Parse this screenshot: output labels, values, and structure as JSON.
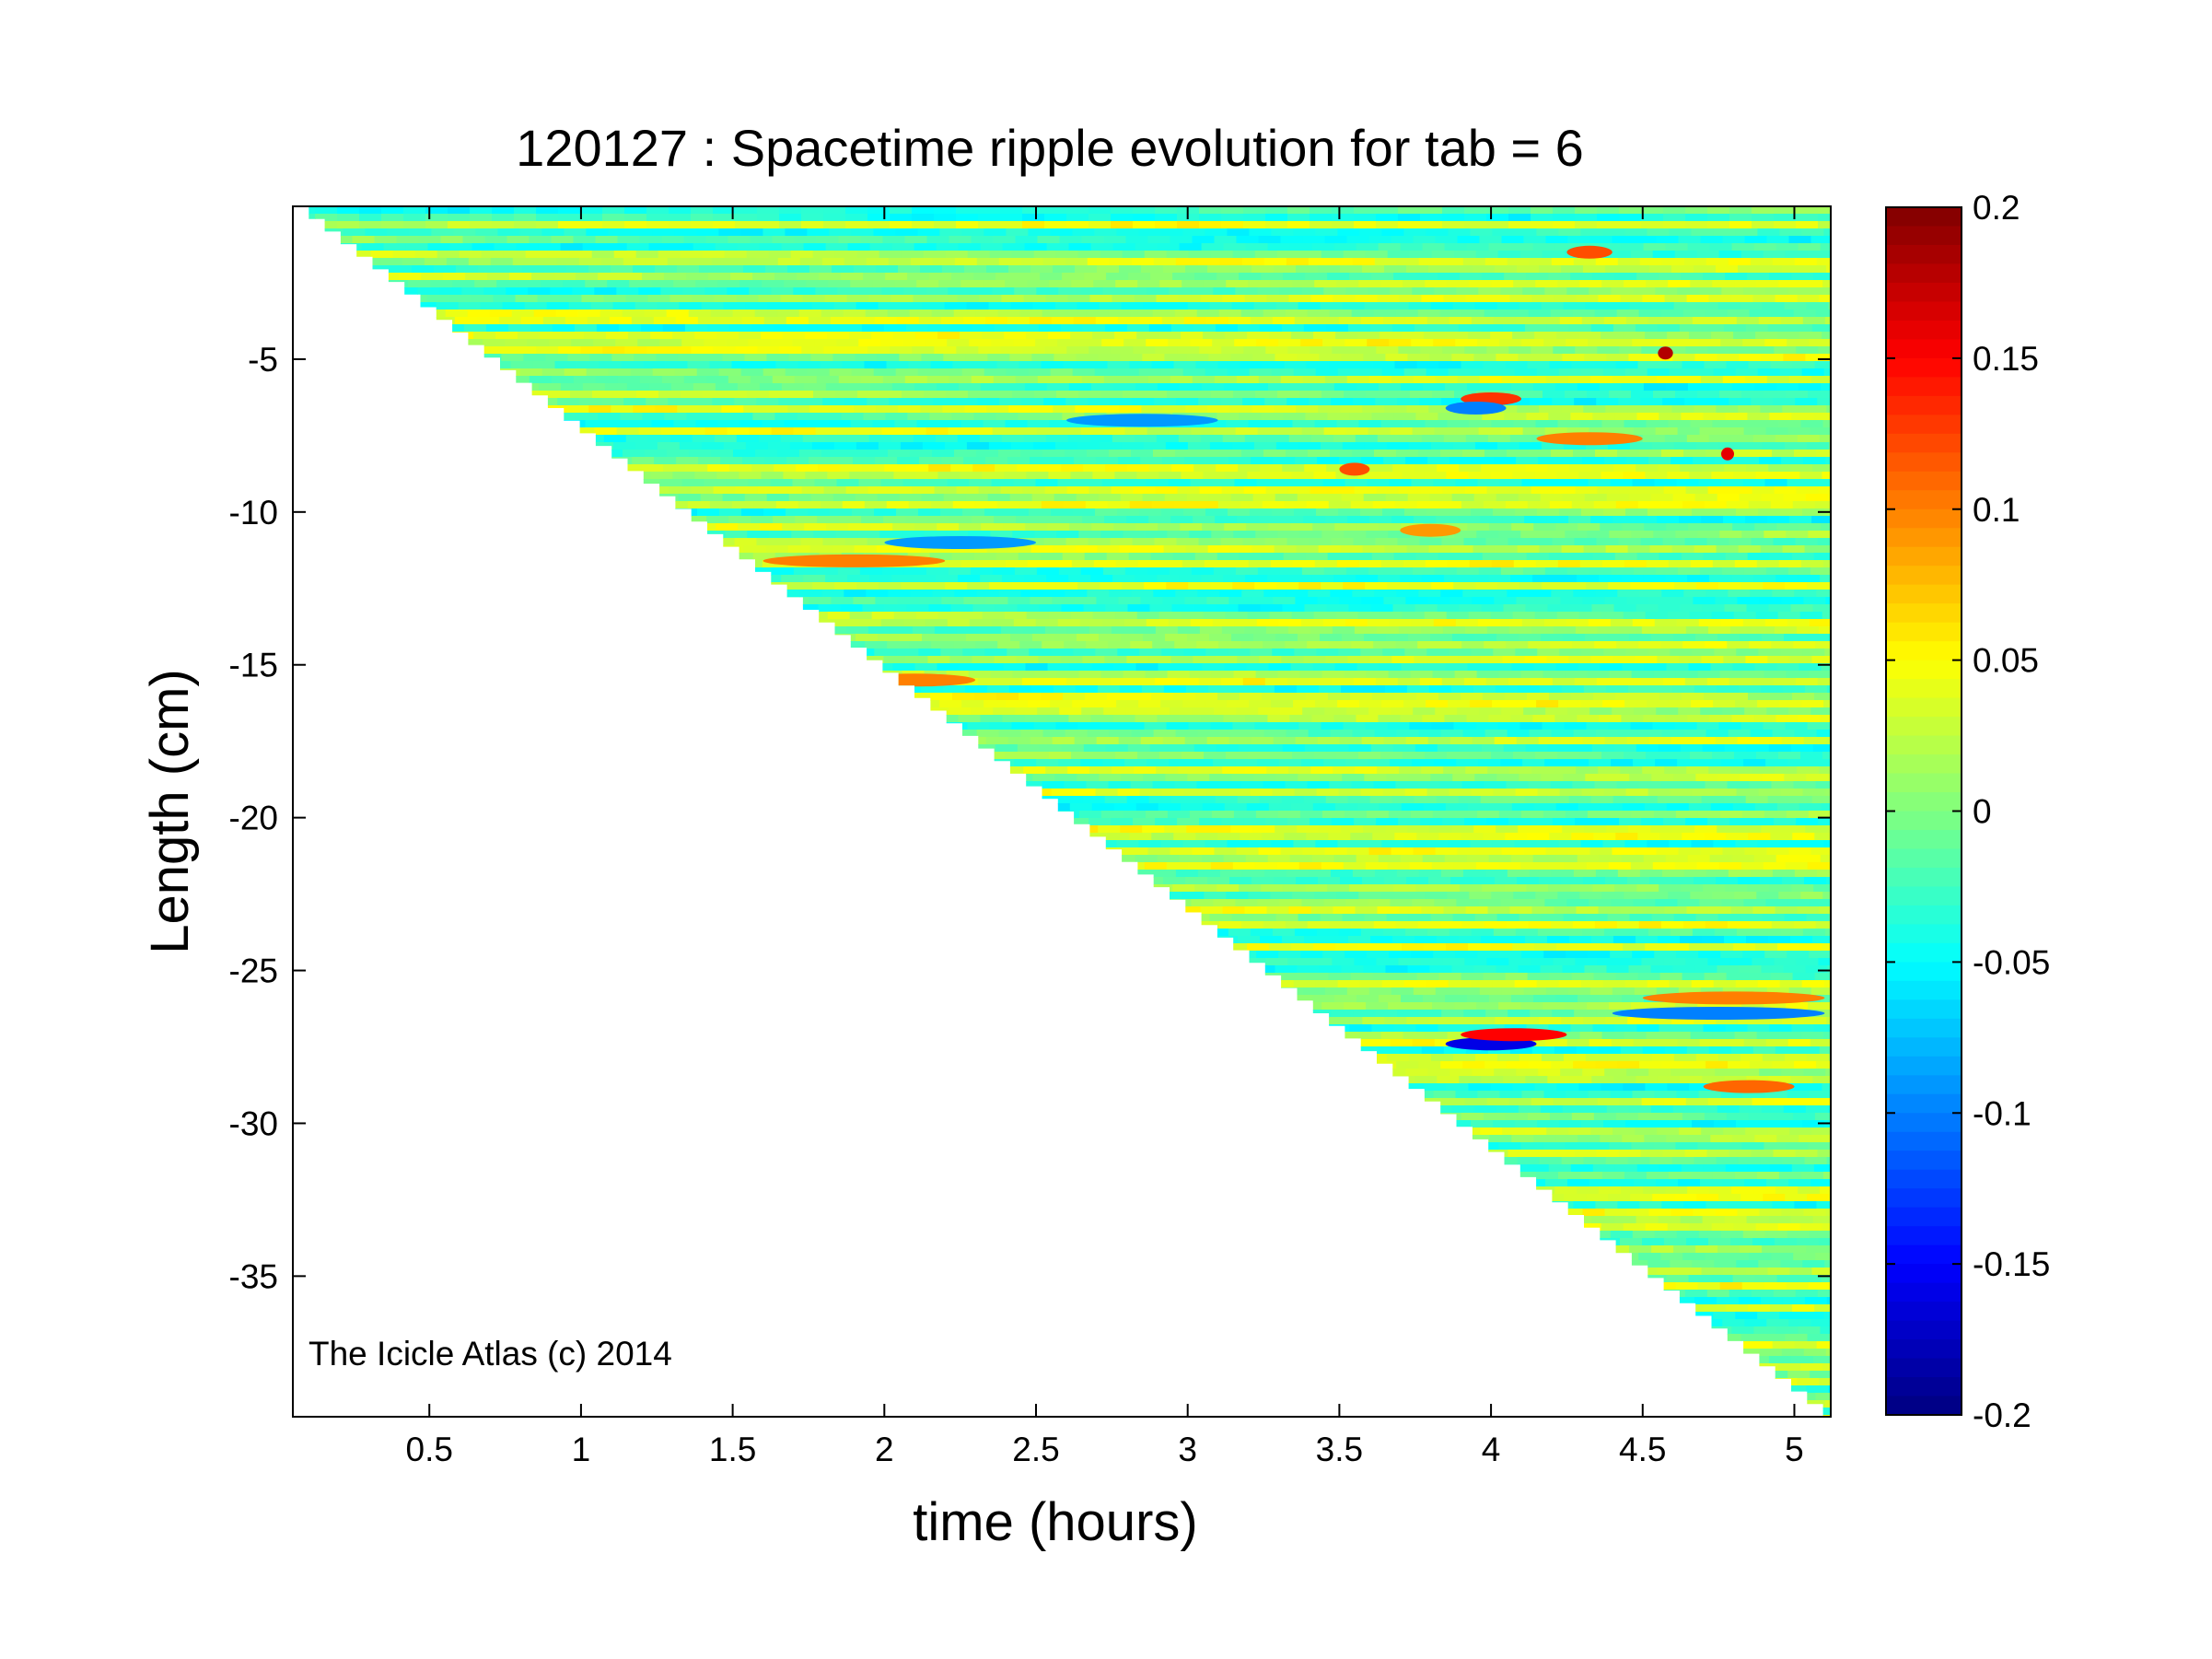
{
  "chart_data": {
    "type": "heatmap",
    "title": "120127 : Spacetime ripple evolution for tab = 6",
    "xlabel": "time (hours)",
    "ylabel": "Length (cm)",
    "annotation": "The Icicle Atlas (c) 2014",
    "xlim": [
      0.05,
      5.12
    ],
    "ylim": [
      -39.6,
      0
    ],
    "xticks": [
      0.5,
      1,
      1.5,
      2,
      2.5,
      3,
      3.5,
      4,
      4.5,
      5
    ],
    "xtick_labels": [
      "0.5",
      "1",
      "1.5",
      "2",
      "2.5",
      "3",
      "3.5",
      "4",
      "4.5",
      "5"
    ],
    "yticks": [
      -5,
      -10,
      -15,
      -20,
      -25,
      -30,
      -35
    ],
    "ytick_labels": [
      "-5",
      "-10",
      "-15",
      "-20",
      "-25",
      "-30",
      "-35"
    ],
    "colormap": "jet",
    "clim": [
      -0.2,
      0.2
    ],
    "colorbar_ticks": [
      0.2,
      0.15,
      0.1,
      0.05,
      0,
      -0.05,
      -0.1,
      -0.15,
      -0.2
    ],
    "colorbar_tick_labels": [
      "0.2",
      "0.15",
      "0.1",
      "0.05",
      "0",
      "-0.05",
      "-0.1",
      "-0.15",
      "-0.2"
    ],
    "data_region": "filled above the diagonal from (0.05, 0) to (5.1, -39.6); blank below",
    "features": [
      {
        "x": [
          3.85,
          4.15
        ],
        "y": -27.4,
        "value": -0.16
      },
      {
        "x": [
          3.9,
          4.25
        ],
        "y": -27.1,
        "value": 0.15
      },
      {
        "x": [
          3.9,
          4.1
        ],
        "y": -6.3,
        "value": 0.13
      },
      {
        "x": [
          3.85,
          4.05
        ],
        "y": -6.6,
        "value": -0.1
      },
      {
        "x": [
          4.55,
          4.6
        ],
        "y": -4.8,
        "value": 0.18
      },
      {
        "x": [
          4.76,
          4.8
        ],
        "y": -8.1,
        "value": 0.16
      },
      {
        "x": [
          4.25,
          4.4
        ],
        "y": -1.5,
        "value": 0.12
      },
      {
        "x": [
          4.15,
          4.5
        ],
        "y": -7.6,
        "value": 0.1
      },
      {
        "x": [
          4.5,
          5.1
        ],
        "y": -25.9,
        "value": 0.1
      },
      {
        "x": [
          4.4,
          5.1
        ],
        "y": -26.4,
        "value": -0.1
      },
      {
        "x": [
          4.7,
          5.0
        ],
        "y": -28.8,
        "value": 0.11
      },
      {
        "x": [
          3.5,
          3.6
        ],
        "y": -8.6,
        "value": 0.12
      },
      {
        "x": [
          1.9,
          2.3
        ],
        "y": -15.5,
        "value": 0.1
      },
      {
        "x": [
          2.0,
          2.5
        ],
        "y": -11.0,
        "value": -0.09
      },
      {
        "x": [
          2.6,
          3.1
        ],
        "y": -7.0,
        "value": -0.09
      },
      {
        "x": [
          3.7,
          3.9
        ],
        "y": -10.6,
        "value": 0.09
      },
      {
        "x": [
          1.6,
          2.2
        ],
        "y": -11.6,
        "value": 0.1
      }
    ]
  }
}
